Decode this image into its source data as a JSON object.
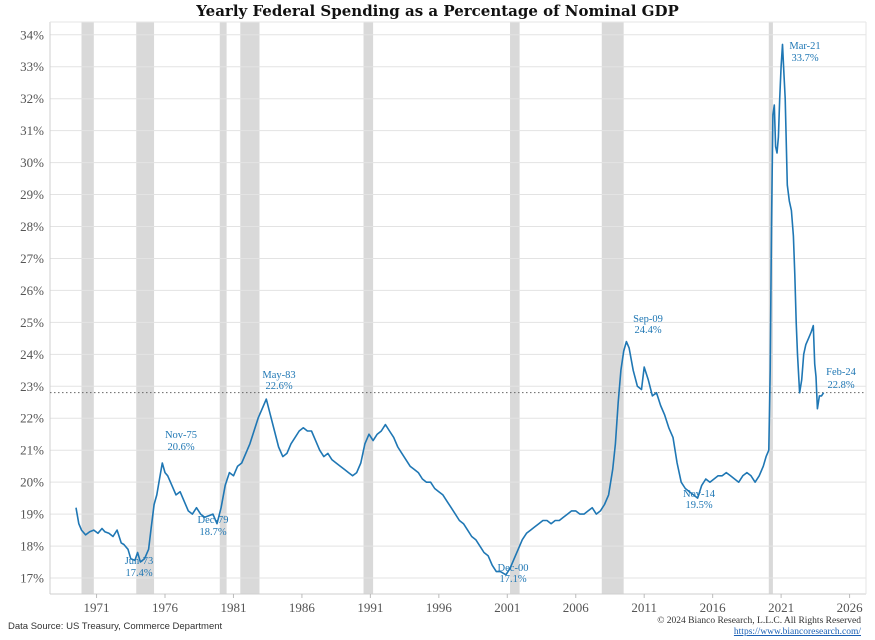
{
  "chart_data": {
    "type": "line",
    "title": "Yearly Federal Spending as a Percentage of Nominal GDP",
    "xlabel": "",
    "ylabel": "",
    "x_ticks": [
      "1971",
      "1976",
      "1981",
      "1986",
      "1991",
      "1996",
      "2001",
      "2006",
      "2011",
      "2016",
      "2021",
      "2026"
    ],
    "y_ticks": [
      "17%",
      "18%",
      "19%",
      "20%",
      "21%",
      "22%",
      "23%",
      "24%",
      "25%",
      "26%",
      "27%",
      "28%",
      "29%",
      "30%",
      "31%",
      "32%",
      "33%",
      "34%"
    ],
    "xlim": [
      1967.6,
      2027.2
    ],
    "ylim": [
      16.5,
      34.4
    ],
    "grid": "horizontal",
    "line_color": "#1f77b4",
    "recession_color": "#d9d9d9",
    "reference_line": {
      "value": 22.8,
      "style": "dotted"
    },
    "recessions": [
      [
        1969.9,
        1970.8
      ],
      [
        1973.9,
        1975.2
      ],
      [
        1980.0,
        1980.5
      ],
      [
        1981.5,
        1982.9
      ],
      [
        1990.5,
        1991.2
      ],
      [
        2001.2,
        2001.9
      ],
      [
        2007.9,
        2009.5
      ],
      [
        2020.1,
        2020.4
      ]
    ],
    "series": [
      {
        "values": [
          [
            1969.5,
            19.2
          ],
          [
            1969.7,
            18.7
          ],
          [
            1969.9,
            18.5
          ],
          [
            1970.2,
            18.35
          ],
          [
            1970.5,
            18.45
          ],
          [
            1970.8,
            18.5
          ],
          [
            1971.1,
            18.4
          ],
          [
            1971.4,
            18.55
          ],
          [
            1971.6,
            18.45
          ],
          [
            1971.9,
            18.4
          ],
          [
            1972.2,
            18.3
          ],
          [
            1972.5,
            18.5
          ],
          [
            1972.8,
            18.1
          ],
          [
            1973.0,
            18.05
          ],
          [
            1973.3,
            17.9
          ],
          [
            1973.5,
            17.6
          ],
          [
            1973.8,
            17.55
          ],
          [
            1974.0,
            17.8
          ],
          [
            1974.2,
            17.5
          ],
          [
            1974.5,
            17.6
          ],
          [
            1974.8,
            17.9
          ],
          [
            1975.0,
            18.6
          ],
          [
            1975.2,
            19.3
          ],
          [
            1975.4,
            19.6
          ],
          [
            1975.6,
            20.1
          ],
          [
            1975.8,
            20.6
          ],
          [
            1976.0,
            20.3
          ],
          [
            1976.2,
            20.2
          ],
          [
            1976.5,
            19.9
          ],
          [
            1976.8,
            19.6
          ],
          [
            1977.1,
            19.7
          ],
          [
            1977.4,
            19.4
          ],
          [
            1977.7,
            19.1
          ],
          [
            1978.0,
            19.0
          ],
          [
            1978.3,
            19.2
          ],
          [
            1978.6,
            19.0
          ],
          [
            1978.9,
            18.9
          ],
          [
            1979.2,
            18.95
          ],
          [
            1979.5,
            19.0
          ],
          [
            1979.8,
            18.7
          ],
          [
            1980.1,
            19.2
          ],
          [
            1980.4,
            19.9
          ],
          [
            1980.7,
            20.3
          ],
          [
            1981.0,
            20.2
          ],
          [
            1981.3,
            20.5
          ],
          [
            1981.6,
            20.6
          ],
          [
            1981.9,
            20.9
          ],
          [
            1982.2,
            21.2
          ],
          [
            1982.5,
            21.6
          ],
          [
            1982.8,
            22.0
          ],
          [
            1983.1,
            22.3
          ],
          [
            1983.4,
            22.6
          ],
          [
            1983.7,
            22.1
          ],
          [
            1984.0,
            21.6
          ],
          [
            1984.3,
            21.1
          ],
          [
            1984.6,
            20.8
          ],
          [
            1984.9,
            20.9
          ],
          [
            1985.2,
            21.2
          ],
          [
            1985.5,
            21.4
          ],
          [
            1985.8,
            21.6
          ],
          [
            1986.1,
            21.7
          ],
          [
            1986.4,
            21.6
          ],
          [
            1986.7,
            21.6
          ],
          [
            1987.0,
            21.3
          ],
          [
            1987.3,
            21.0
          ],
          [
            1987.6,
            20.8
          ],
          [
            1987.9,
            20.9
          ],
          [
            1988.2,
            20.7
          ],
          [
            1988.5,
            20.6
          ],
          [
            1988.8,
            20.5
          ],
          [
            1989.1,
            20.4
          ],
          [
            1989.4,
            20.3
          ],
          [
            1989.7,
            20.2
          ],
          [
            1990.0,
            20.3
          ],
          [
            1990.3,
            20.6
          ],
          [
            1990.6,
            21.2
          ],
          [
            1990.9,
            21.5
          ],
          [
            1991.2,
            21.3
          ],
          [
            1991.5,
            21.5
          ],
          [
            1991.8,
            21.6
          ],
          [
            1992.1,
            21.8
          ],
          [
            1992.4,
            21.6
          ],
          [
            1992.7,
            21.4
          ],
          [
            1993.0,
            21.1
          ],
          [
            1993.3,
            20.9
          ],
          [
            1993.6,
            20.7
          ],
          [
            1993.9,
            20.5
          ],
          [
            1994.2,
            20.4
          ],
          [
            1994.5,
            20.3
          ],
          [
            1994.8,
            20.1
          ],
          [
            1995.1,
            20.0
          ],
          [
            1995.4,
            20.0
          ],
          [
            1995.7,
            19.8
          ],
          [
            1996.0,
            19.7
          ],
          [
            1996.3,
            19.6
          ],
          [
            1996.6,
            19.4
          ],
          [
            1996.9,
            19.2
          ],
          [
            1997.2,
            19.0
          ],
          [
            1997.5,
            18.8
          ],
          [
            1997.8,
            18.7
          ],
          [
            1998.1,
            18.5
          ],
          [
            1998.4,
            18.3
          ],
          [
            1998.7,
            18.2
          ],
          [
            1999.0,
            18.0
          ],
          [
            1999.3,
            17.8
          ],
          [
            1999.6,
            17.7
          ],
          [
            1999.9,
            17.4
          ],
          [
            2000.2,
            17.2
          ],
          [
            2000.5,
            17.2
          ],
          [
            2000.9,
            17.1
          ],
          [
            2001.2,
            17.3
          ],
          [
            2001.5,
            17.6
          ],
          [
            2001.8,
            17.9
          ],
          [
            2002.1,
            18.2
          ],
          [
            2002.4,
            18.4
          ],
          [
            2002.7,
            18.5
          ],
          [
            2003.0,
            18.6
          ],
          [
            2003.3,
            18.7
          ],
          [
            2003.6,
            18.8
          ],
          [
            2003.9,
            18.8
          ],
          [
            2004.2,
            18.7
          ],
          [
            2004.5,
            18.8
          ],
          [
            2004.8,
            18.8
          ],
          [
            2005.1,
            18.9
          ],
          [
            2005.4,
            19.0
          ],
          [
            2005.7,
            19.1
          ],
          [
            2006.0,
            19.1
          ],
          [
            2006.3,
            19.0
          ],
          [
            2006.6,
            19.0
          ],
          [
            2006.9,
            19.1
          ],
          [
            2007.2,
            19.2
          ],
          [
            2007.5,
            19.0
          ],
          [
            2007.8,
            19.1
          ],
          [
            2008.1,
            19.3
          ],
          [
            2008.4,
            19.6
          ],
          [
            2008.7,
            20.4
          ],
          [
            2008.9,
            21.2
          ],
          [
            2009.1,
            22.5
          ],
          [
            2009.3,
            23.5
          ],
          [
            2009.5,
            24.1
          ],
          [
            2009.7,
            24.4
          ],
          [
            2009.9,
            24.2
          ],
          [
            2010.2,
            23.5
          ],
          [
            2010.5,
            23.0
          ],
          [
            2010.8,
            22.9
          ],
          [
            2011.0,
            23.6
          ],
          [
            2011.3,
            23.2
          ],
          [
            2011.6,
            22.7
          ],
          [
            2011.9,
            22.8
          ],
          [
            2012.2,
            22.4
          ],
          [
            2012.5,
            22.1
          ],
          [
            2012.8,
            21.7
          ],
          [
            2013.1,
            21.4
          ],
          [
            2013.4,
            20.6
          ],
          [
            2013.7,
            20.0
          ],
          [
            2014.0,
            19.8
          ],
          [
            2014.3,
            19.7
          ],
          [
            2014.6,
            19.6
          ],
          [
            2014.9,
            19.5
          ],
          [
            2015.2,
            19.9
          ],
          [
            2015.5,
            20.1
          ],
          [
            2015.8,
            20.0
          ],
          [
            2016.1,
            20.1
          ],
          [
            2016.4,
            20.2
          ],
          [
            2016.7,
            20.2
          ],
          [
            2017.0,
            20.3
          ],
          [
            2017.3,
            20.2
          ],
          [
            2017.6,
            20.1
          ],
          [
            2017.9,
            20.0
          ],
          [
            2018.2,
            20.2
          ],
          [
            2018.5,
            20.3
          ],
          [
            2018.8,
            20.2
          ],
          [
            2019.1,
            20.0
          ],
          [
            2019.4,
            20.2
          ],
          [
            2019.7,
            20.5
          ],
          [
            2019.9,
            20.8
          ],
          [
            2020.1,
            21.0
          ],
          [
            2020.2,
            23.5
          ],
          [
            2020.3,
            28.0
          ],
          [
            2020.4,
            31.5
          ],
          [
            2020.5,
            31.8
          ],
          [
            2020.6,
            30.5
          ],
          [
            2020.7,
            30.3
          ],
          [
            2020.8,
            30.8
          ],
          [
            2020.9,
            32.0
          ],
          [
            2021.0,
            33.0
          ],
          [
            2021.1,
            33.7
          ],
          [
            2021.2,
            32.8
          ],
          [
            2021.3,
            32.0
          ],
          [
            2021.45,
            29.3
          ],
          [
            2021.6,
            28.8
          ],
          [
            2021.75,
            28.5
          ],
          [
            2021.9,
            27.7
          ],
          [
            2022.0,
            26.5
          ],
          [
            2022.1,
            25.0
          ],
          [
            2022.2,
            24.0
          ],
          [
            2022.35,
            22.8
          ],
          [
            2022.5,
            23.2
          ],
          [
            2022.65,
            24.0
          ],
          [
            2022.8,
            24.3
          ],
          [
            2023.0,
            24.5
          ],
          [
            2023.2,
            24.7
          ],
          [
            2023.35,
            24.9
          ],
          [
            2023.45,
            23.7
          ],
          [
            2023.55,
            23.3
          ],
          [
            2023.65,
            22.3
          ],
          [
            2023.8,
            22.7
          ],
          [
            2023.95,
            22.7
          ],
          [
            2024.1,
            22.8
          ]
        ]
      }
    ]
  },
  "annotations": [
    {
      "date": "Jun-73",
      "value": "17.4%"
    },
    {
      "date": "Nov-75",
      "value": "20.6%"
    },
    {
      "date": "Dec-79",
      "value": "18.7%"
    },
    {
      "date": "May-83",
      "value": "22.6%"
    },
    {
      "date": "Dec-00",
      "value": "17.1%"
    },
    {
      "date": "Sep-09",
      "value": "24.4%"
    },
    {
      "date": "Nov-14",
      "value": "19.5%"
    },
    {
      "date": "Mar-21",
      "value": "33.7%"
    },
    {
      "date": "Feb-24",
      "value": "22.8%"
    }
  ],
  "footer": {
    "source": "Data Source: US Treasury, Commerce Department",
    "copyright": "© 2024 Bianco Research, L.L.C. All Rights Reserved",
    "url": "https://www.biancoresearch.com/"
  }
}
